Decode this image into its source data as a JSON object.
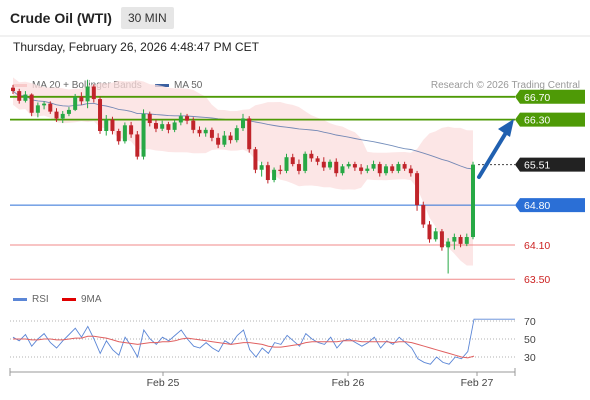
{
  "header": {
    "title": "Crude Oil (WTI)",
    "interval": "30 MIN",
    "datetime": "Thursday, February 26, 2026 4:48:47 PM CET"
  },
  "legend": {
    "bb": {
      "label": "MA 20 + Bollinger Bands",
      "color": "#f08a8a"
    },
    "ma50": {
      "label": "MA 50",
      "color": "#3a5fa0"
    },
    "rsi": {
      "label": "RSI",
      "color": "#5b86d6"
    },
    "ma9": {
      "label": "9MA",
      "color": "#e00000"
    }
  },
  "credit": "Research © 2026 Trading Central",
  "chart_data": {
    "type": "candlestick",
    "x_ticks": [
      "Feb 25",
      "Feb 26",
      "Feb 27"
    ],
    "price_levels": [
      {
        "label": "66.70",
        "value": 66.7,
        "kind": "resistance",
        "color": "#4e9a06"
      },
      {
        "label": "66.30",
        "value": 66.3,
        "kind": "resistance",
        "color": "#4e9a06"
      },
      {
        "label": "65.51",
        "value": 65.51,
        "kind": "last",
        "color": "#222222"
      },
      {
        "label": "64.80",
        "value": 64.8,
        "kind": "pivot",
        "color": "#2b6fd6"
      },
      {
        "label": "64.10",
        "value": 64.1,
        "kind": "support",
        "color": "#cc2222"
      },
      {
        "label": "63.50",
        "value": 63.5,
        "kind": "support",
        "color": "#cc2222"
      }
    ],
    "candles": [
      [
        66.86,
        66.91,
        66.75,
        66.8
      ],
      [
        66.8,
        66.84,
        66.58,
        66.63
      ],
      [
        66.63,
        66.8,
        66.6,
        66.74
      ],
      [
        66.74,
        66.76,
        66.36,
        66.42
      ],
      [
        66.42,
        66.6,
        66.34,
        66.55
      ],
      [
        66.55,
        66.62,
        66.48,
        66.58
      ],
      [
        66.58,
        66.62,
        66.4,
        66.44
      ],
      [
        66.44,
        66.5,
        66.26,
        66.32
      ],
      [
        66.32,
        66.45,
        66.24,
        66.4
      ],
      [
        66.4,
        66.52,
        66.36,
        66.47
      ],
      [
        66.47,
        66.75,
        66.45,
        66.7
      ],
      [
        66.7,
        66.78,
        66.56,
        66.62
      ],
      [
        66.62,
        67.0,
        66.5,
        66.88
      ],
      [
        66.88,
        66.92,
        66.6,
        66.66
      ],
      [
        66.66,
        66.7,
        66.05,
        66.1
      ],
      [
        66.1,
        66.38,
        66.02,
        66.3
      ],
      [
        66.3,
        66.35,
        66.04,
        66.1
      ],
      [
        66.1,
        66.14,
        65.86,
        65.92
      ],
      [
        65.92,
        66.25,
        65.88,
        66.2
      ],
      [
        66.2,
        66.26,
        65.98,
        66.04
      ],
      [
        66.04,
        66.1,
        65.6,
        65.65
      ],
      [
        65.65,
        66.48,
        65.6,
        66.4
      ],
      [
        66.4,
        66.44,
        66.18,
        66.24
      ],
      [
        66.24,
        66.3,
        66.08,
        66.14
      ],
      [
        66.14,
        66.28,
        66.1,
        66.22
      ],
      [
        66.22,
        66.26,
        66.06,
        66.12
      ],
      [
        66.12,
        66.3,
        66.08,
        66.25
      ],
      [
        66.25,
        66.42,
        66.2,
        66.36
      ],
      [
        66.36,
        66.4,
        66.22,
        66.28
      ],
      [
        66.28,
        66.34,
        66.06,
        66.12
      ],
      [
        66.12,
        66.18,
        66.0,
        66.06
      ],
      [
        66.06,
        66.16,
        66.0,
        66.12
      ],
      [
        66.12,
        66.16,
        65.92,
        65.98
      ],
      [
        65.98,
        66.06,
        65.8,
        65.86
      ],
      [
        65.86,
        66.1,
        65.82,
        66.02
      ],
      [
        66.02,
        66.08,
        65.88,
        65.94
      ],
      [
        65.94,
        66.2,
        65.9,
        66.15
      ],
      [
        66.15,
        66.4,
        66.1,
        66.32
      ],
      [
        66.32,
        66.36,
        65.72,
        65.78
      ],
      [
        65.78,
        65.82,
        65.36,
        65.42
      ],
      [
        65.42,
        65.56,
        65.3,
        65.5
      ],
      [
        65.5,
        65.56,
        65.18,
        65.24
      ],
      [
        65.24,
        65.46,
        65.2,
        65.42
      ],
      [
        65.42,
        65.5,
        65.34,
        65.4
      ],
      [
        65.4,
        65.7,
        65.36,
        65.64
      ],
      [
        65.64,
        65.7,
        65.48,
        65.52
      ],
      [
        65.52,
        65.6,
        65.34,
        65.4
      ],
      [
        65.4,
        65.74,
        65.36,
        65.7
      ],
      [
        65.7,
        65.76,
        65.56,
        65.62
      ],
      [
        65.62,
        65.66,
        65.5,
        65.56
      ],
      [
        65.56,
        65.64,
        65.4,
        65.46
      ],
      [
        65.46,
        65.6,
        65.42,
        65.56
      ],
      [
        65.56,
        65.62,
        65.3,
        65.36
      ],
      [
        65.36,
        65.52,
        65.32,
        65.48
      ],
      [
        65.48,
        65.56,
        65.44,
        65.52
      ],
      [
        65.52,
        65.56,
        65.4,
        65.46
      ],
      [
        65.46,
        65.52,
        65.34,
        65.4
      ],
      [
        65.4,
        65.5,
        65.36,
        65.44
      ],
      [
        65.44,
        65.58,
        65.4,
        65.52
      ],
      [
        65.52,
        65.56,
        65.3,
        65.36
      ],
      [
        65.36,
        65.52,
        65.32,
        65.48
      ],
      [
        65.48,
        65.52,
        65.36,
        65.4
      ],
      [
        65.4,
        65.56,
        65.36,
        65.52
      ],
      [
        65.52,
        65.56,
        65.4,
        65.44
      ],
      [
        65.44,
        65.5,
        65.3,
        65.36
      ],
      [
        65.36,
        65.4,
        64.7,
        64.8
      ],
      [
        64.8,
        64.86,
        64.4,
        64.46
      ],
      [
        64.46,
        64.52,
        64.14,
        64.2
      ],
      [
        64.2,
        64.4,
        64.16,
        64.34
      ],
      [
        64.34,
        64.38,
        64.0,
        64.06
      ],
      [
        64.06,
        64.22,
        63.6,
        64.16
      ],
      [
        64.16,
        64.3,
        64.02,
        64.24
      ],
      [
        64.24,
        64.28,
        64.06,
        64.12
      ],
      [
        64.12,
        64.3,
        64.08,
        64.24
      ],
      [
        64.24,
        65.56,
        64.2,
        65.51
      ]
    ],
    "rsi": {
      "levels": [
        70,
        50,
        30
      ],
      "rsi_values": [
        52,
        48,
        55,
        42,
        50,
        56,
        46,
        40,
        48,
        55,
        62,
        52,
        64,
        50,
        34,
        48,
        38,
        32,
        52,
        42,
        30,
        60,
        50,
        44,
        52,
        48,
        54,
        60,
        50,
        42,
        40,
        46,
        40,
        36,
        48,
        44,
        54,
        60,
        38,
        30,
        40,
        34,
        46,
        44,
        54,
        48,
        42,
        56,
        50,
        46,
        44,
        52,
        40,
        48,
        50,
        46,
        42,
        46,
        52,
        40,
        48,
        44,
        52,
        46,
        40,
        28,
        24,
        22,
        30,
        24,
        22,
        30,
        28,
        36,
        72
      ],
      "ma9_values": [
        50,
        50,
        50,
        49,
        49,
        50,
        50,
        49,
        49,
        50,
        51,
        51,
        53,
        53,
        52,
        51,
        49,
        47,
        46,
        45,
        44,
        45,
        46,
        46,
        47,
        47,
        48,
        50,
        51,
        50,
        49,
        48,
        47,
        46,
        45,
        44,
        45,
        46,
        46,
        45,
        44,
        42,
        41,
        41,
        42,
        43,
        44,
        46,
        47,
        47,
        47,
        47,
        47,
        48,
        48,
        48,
        47,
        47,
        47,
        47,
        47,
        46,
        47,
        47,
        46,
        44,
        42,
        40,
        38,
        36,
        34,
        32,
        30,
        29,
        31
      ]
    }
  }
}
